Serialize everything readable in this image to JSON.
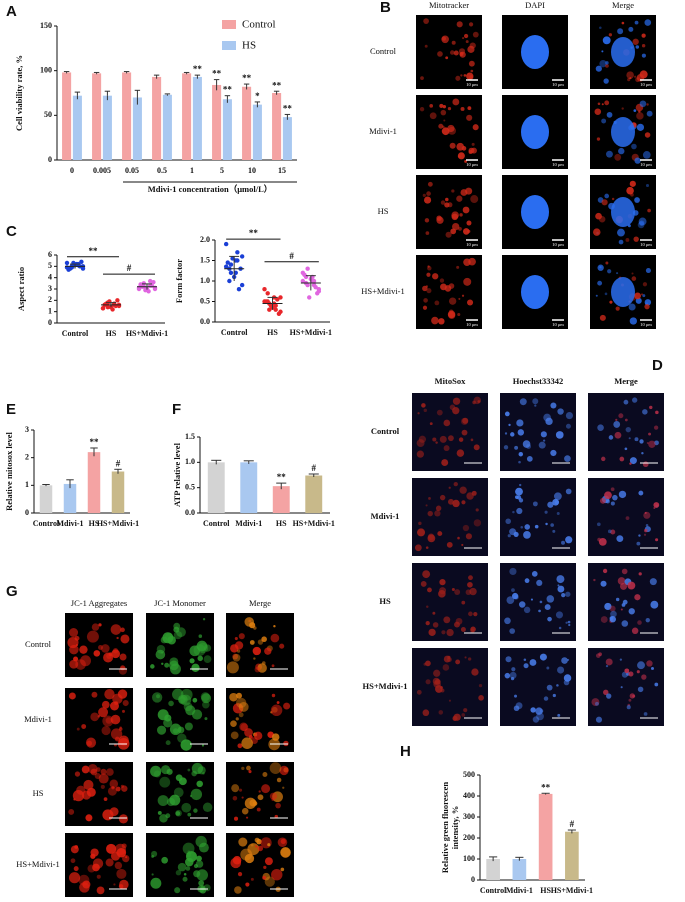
{
  "panel_labels": [
    "A",
    "B",
    "C",
    "D",
    "E",
    "F",
    "G",
    "H"
  ],
  "image_panels": [
    {
      "columns": [
        "Mitotracker",
        "DAPI",
        "Merge"
      ],
      "rows": [
        "Control",
        "Mdivi-1",
        "HS",
        "HS+Mdivi-1"
      ],
      "scale_bar": "10 μm"
    },
    {
      "columns": [
        "MitoSox",
        "Hoechst33342",
        "Merge"
      ],
      "rows": [
        "Control",
        "Mdivi-1",
        "HS",
        "HS+Mdivi-1"
      ]
    },
    {
      "columns": [
        "JC-1 Aggregates",
        "JC-1 Monomer",
        "Merge"
      ],
      "rows": [
        "Control",
        "Mdivi-1",
        "HS",
        "HS+Mdivi-1"
      ]
    }
  ],
  "chart_data": [
    {
      "type": "bar",
      "ylabel": "Cell viability rate, %",
      "xlabel": "Mdivi-1 concentration（μmol/L）",
      "categories": [
        "0",
        "0.005",
        "0.05",
        "0.5",
        "1",
        "5",
        "10",
        "15"
      ],
      "ylim": [
        0,
        150
      ],
      "yticks": [
        0,
        50,
        100,
        150
      ],
      "legend": "top-right",
      "series": [
        {
          "name": "Control",
          "color": "#f4a3a3",
          "values": [
            98,
            97,
            98,
            93,
            97,
            84,
            82,
            75
          ],
          "errors": [
            1,
            1,
            1,
            2,
            1,
            6,
            3,
            2
          ],
          "annotations": [
            null,
            null,
            null,
            null,
            null,
            "**",
            "**",
            "**"
          ]
        },
        {
          "name": "HS",
          "color": "#a9c8f0",
          "values": [
            72,
            72,
            70,
            73,
            93,
            68,
            62,
            48
          ],
          "errors": [
            4,
            5,
            8,
            1,
            2,
            4,
            3,
            3
          ],
          "annotations": [
            null,
            null,
            null,
            null,
            "**",
            "**",
            "*",
            "**"
          ]
        }
      ]
    },
    {
      "type": "strip",
      "ylabel": "Aspect ratio",
      "categories": [
        "Control",
        "HS",
        "HS+Mdivi-1"
      ],
      "ylim": [
        0,
        6
      ],
      "yticks": [
        0,
        1,
        2,
        3,
        4,
        5,
        6
      ],
      "colors": [
        "#1a3fd6",
        "#e8262a",
        "#e066e0"
      ],
      "values": [
        [
          5.3,
          5.1,
          4.9,
          5.0,
          5.2,
          4.8,
          5.4,
          5.1,
          4.7,
          5.0,
          5.3,
          4.9,
          5.2,
          5.0,
          4.8
        ],
        [
          1.3,
          1.6,
          1.8,
          1.5,
          1.2,
          1.7,
          2.0,
          1.4,
          1.6,
          1.5,
          1.9,
          1.3,
          1.7,
          1.4,
          1.6
        ],
        [
          3.0,
          3.3,
          3.5,
          3.1,
          2.8,
          3.2,
          3.6,
          3.0,
          3.4,
          3.3,
          2.9,
          3.1,
          3.7,
          3.2,
          3.0
        ]
      ],
      "means": [
        5.0,
        1.6,
        3.2
      ],
      "sd": [
        0.2,
        0.2,
        0.25
      ],
      "brackets": [
        {
          "from": 0,
          "to": 1,
          "label": "**"
        },
        {
          "from": 1,
          "to": 2,
          "label": "#"
        }
      ]
    },
    {
      "type": "strip",
      "ylabel": "Form factor",
      "categories": [
        "Control",
        "HS",
        "HS+Mdivi-1"
      ],
      "ylim": [
        0,
        2
      ],
      "yticks": [
        {
          "value": 0,
          "label": "0.0"
        },
        {
          "value": 0.5,
          "label": "0.5"
        },
        {
          "value": 1,
          "label": "1.0"
        },
        {
          "value": 1.5,
          "label": "1.5"
        },
        {
          "value": 2,
          "label": "2.0"
        }
      ],
      "colors": [
        "#1a3fd6",
        "#e8262a",
        "#e066e0"
      ],
      "values": [
        [
          1.9,
          1.5,
          1.4,
          1.6,
          1.2,
          1.0,
          1.3,
          1.1,
          1.45,
          0.8,
          1.55,
          1.35,
          1.7,
          1.2,
          0.9,
          1.5,
          1.3
        ],
        [
          0.5,
          0.4,
          0.3,
          0.6,
          0.45,
          0.7,
          0.2,
          0.35,
          0.5,
          0.55,
          0.4,
          0.8,
          0.3,
          0.45,
          0.25,
          0.6,
          0.5
        ],
        [
          1.2,
          1.0,
          0.9,
          0.8,
          1.1,
          0.95,
          0.7,
          1.05,
          1.15,
          0.85,
          0.6,
          1.0,
          0.9,
          1.3,
          0.75,
          1.0,
          1.1
        ]
      ],
      "means": [
        1.3,
        0.45,
        0.95
      ],
      "sd": [
        0.3,
        0.15,
        0.18
      ],
      "brackets": [
        {
          "from": 0,
          "to": 1,
          "label": "**"
        },
        {
          "from": 1,
          "to": 2,
          "label": "#"
        }
      ]
    },
    {
      "type": "bar",
      "ylabel": "Relative mitosox level",
      "categories": [
        "Control",
        "Mdivi-1",
        "HS",
        "HS+Mdivi-1"
      ],
      "ylim": [
        0,
        3
      ],
      "yticks": [
        0,
        1,
        2,
        3
      ],
      "colors": [
        "#d3d3d3",
        "#a9c8f0",
        "#f4a3a3",
        "#c8b98a"
      ],
      "values": [
        1.0,
        1.05,
        2.2,
        1.5
      ],
      "errors": [
        0.03,
        0.15,
        0.15,
        0.08
      ],
      "annotations": [
        null,
        null,
        "**",
        "#"
      ]
    },
    {
      "type": "bar",
      "ylabel": "ATP relative level",
      "categories": [
        "Control",
        "Mdivi-1",
        "HS",
        "HS+Mdivi-1"
      ],
      "ylim": [
        0,
        1.5
      ],
      "yticks": [
        {
          "value": 0,
          "label": "0.0"
        },
        {
          "value": 0.5,
          "label": "0.5"
        },
        {
          "value": 1,
          "label": "1.0"
        },
        {
          "value": 1.5,
          "label": "1.5"
        }
      ],
      "colors": [
        "#d3d3d3",
        "#a9c8f0",
        "#f4a3a3",
        "#c8b98a"
      ],
      "values": [
        1.0,
        1.0,
        0.53,
        0.74
      ],
      "errors": [
        0.04,
        0.03,
        0.06,
        0.03
      ],
      "annotations": [
        null,
        null,
        "**",
        "#"
      ]
    },
    {
      "type": "bar",
      "ylabel": [
        "Relative green fluorescen",
        "intensity, %"
      ],
      "categories": [
        "Control",
        "Mdivi-1",
        "HS",
        "HS+Mdivi-1"
      ],
      "ylim": [
        0,
        500
      ],
      "yticks": [
        0,
        100,
        200,
        300,
        400,
        500
      ],
      "colors": [
        "#d3d3d3",
        "#a9c8f0",
        "#f4a3a3",
        "#c8b98a"
      ],
      "values": [
        100,
        100,
        410,
        230
      ],
      "errors": [
        10,
        8,
        3,
        8
      ],
      "annotations": [
        null,
        null,
        "**",
        "#"
      ]
    }
  ]
}
